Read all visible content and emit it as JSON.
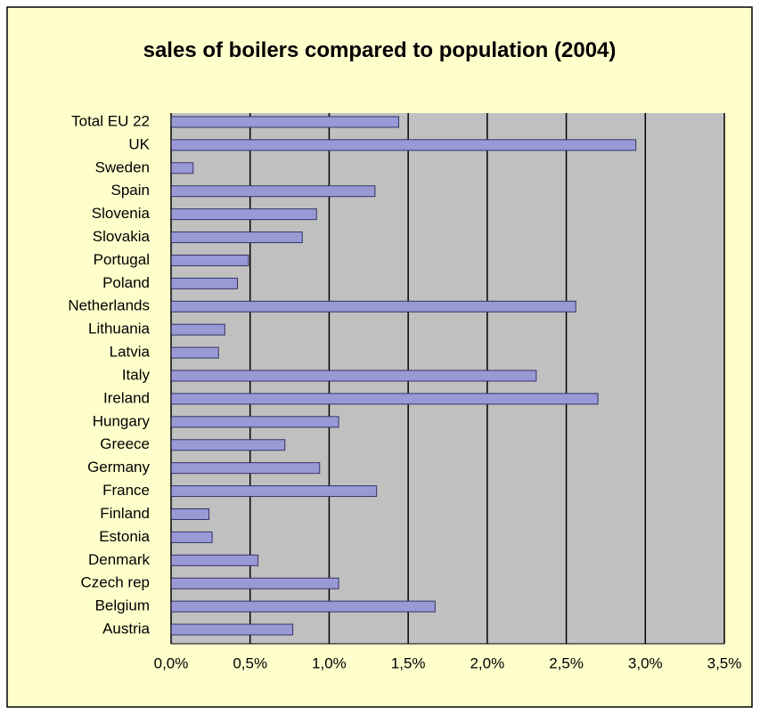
{
  "chart_data": {
    "type": "bar",
    "orientation": "horizontal",
    "title": "sales of boilers compared to population (2004)",
    "categories": [
      "Total EU 22",
      "UK",
      "Sweden",
      "Spain",
      "Slovenia",
      "Slovakia",
      "Portugal",
      "Poland",
      "Netherlands",
      "Lithuania",
      "Latvia",
      "Italy",
      "Ireland",
      "Hungary",
      "Greece",
      "Germany",
      "France",
      "Finland",
      "Estonia",
      "Denmark",
      "Czech rep",
      "Belgium",
      "Austria"
    ],
    "values": [
      1.44,
      2.94,
      0.14,
      1.29,
      0.92,
      0.83,
      0.49,
      0.42,
      2.56,
      0.34,
      0.3,
      2.31,
      2.7,
      1.06,
      0.72,
      0.94,
      1.3,
      0.24,
      0.26,
      0.55,
      1.06,
      1.67,
      0.77
    ],
    "color": "#9999d6",
    "xlim": [
      0,
      3.5
    ],
    "xticks": [
      {
        "value": 0,
        "label": "0,0%"
      },
      {
        "value": 0.5,
        "label": "0,5%"
      },
      {
        "value": 1,
        "label": "1,0%"
      },
      {
        "value": 1.5,
        "label": "1,5%"
      },
      {
        "value": 2,
        "label": "2,0%"
      },
      {
        "value": 2.5,
        "label": "2,5%"
      },
      {
        "value": 3,
        "label": "3,0%"
      },
      {
        "value": 3.5,
        "label": "3,5%"
      }
    ],
    "grid": true
  }
}
